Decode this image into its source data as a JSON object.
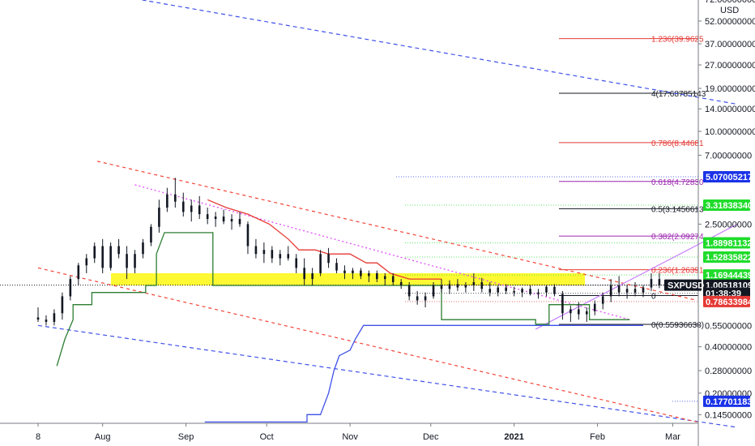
{
  "chart_data": {
    "type": "candlestick",
    "currency": "USD",
    "symbol": "SXPUSD",
    "y_scale": "log",
    "x_ticks": [
      "8",
      "Aug",
      "Sep",
      "Oct",
      "Nov",
      "Dec",
      "2021",
      "Feb",
      "Mar"
    ],
    "y_ticks": [
      {
        "label": "72.00000000",
        "value": 72
      },
      {
        "label": "52.00000000",
        "value": 52
      },
      {
        "label": "37.00000000",
        "value": 37
      },
      {
        "label": "27.00000000",
        "value": 27
      },
      {
        "label": "19.00000000",
        "value": 19
      },
      {
        "label": "14.00000000",
        "value": 14
      },
      {
        "label": "10.00000000",
        "value": 10
      },
      {
        "label": "7.00000000",
        "value": 7
      },
      {
        "label": "2.50000000",
        "value": 2.5
      },
      {
        "label": "0.55000000",
        "value": 0.55
      },
      {
        "label": "0.40000000",
        "value": 0.4
      },
      {
        "label": "0.28000000",
        "value": 0.28
      },
      {
        "label": "0.20000000",
        "value": 0.2
      },
      {
        "label": "0.14500000",
        "value": 0.145
      }
    ],
    "fib_levels": [
      {
        "label": "1.236(39.9625",
        "value": 39.9625,
        "color": "#e53935"
      },
      {
        "label": "4(17.68785143",
        "value": 17.68785143,
        "color": "#131722"
      },
      {
        "label": "0.786(8.44681",
        "value": 8.44681,
        "color": "#e53935"
      },
      {
        "label": "0.618(4.72830",
        "value": 4.7283,
        "color": "#9c27b0"
      },
      {
        "label": "0.5(3.1456613",
        "value": 3.1456613,
        "color": "#131722"
      },
      {
        "label": "0.382(2.09274",
        "value": 2.09274,
        "color": "#9c27b0"
      },
      {
        "label": "0.236(1.26391",
        "value": 1.26391,
        "color": "#e53935"
      },
      {
        "label": "0",
        "value": 0.86,
        "color": "#131722"
      },
      {
        "label": "0(0.55936638)",
        "value": 0.55936638,
        "color": "#131722"
      }
    ],
    "price_badges": [
      {
        "label": "5.07005217",
        "value": 5.07005217,
        "color": "#1a33e8"
      },
      {
        "label": "3.31838340",
        "value": 3.3183834,
        "color": "#1fdc2b"
      },
      {
        "label": "1.88981132",
        "value": 1.88981132,
        "color": "#1fdc2b"
      },
      {
        "label": "1.52835822",
        "value": 1.52835822,
        "color": "#1fdc2b"
      },
      {
        "label": "1.16944439",
        "value": 1.16944439,
        "color": "#1fdc2b"
      },
      {
        "label": "1.00518109",
        "value": 1.00518109,
        "color": "#131722"
      },
      {
        "label": "01:38:39",
        "value": 0.89,
        "color": "#131722"
      },
      {
        "label": "0.78633984",
        "value": 0.78633984,
        "color": "#e53935"
      },
      {
        "label": "0.17701183",
        "value": 0.17701183,
        "color": "#1a33e8"
      }
    ],
    "symbol_badge": {
      "label": "SXPUSD",
      "value": 1.00518109
    },
    "zone": {
      "low": 1.0,
      "high": 1.2
    },
    "price_series": [
      {
        "d": 0,
        "o": 0.62,
        "h": 0.72,
        "l": 0.58,
        "c": 0.6
      },
      {
        "d": 3,
        "o": 0.6,
        "h": 0.64,
        "l": 0.55,
        "c": 0.58
      },
      {
        "d": 6,
        "o": 0.58,
        "h": 0.7,
        "l": 0.55,
        "c": 0.66
      },
      {
        "d": 9,
        "o": 0.66,
        "h": 0.9,
        "l": 0.6,
        "c": 0.85
      },
      {
        "d": 12,
        "o": 0.85,
        "h": 1.15,
        "l": 0.8,
        "c": 1.1
      },
      {
        "d": 15,
        "o": 1.1,
        "h": 1.4,
        "l": 1.0,
        "c": 1.35
      },
      {
        "d": 18,
        "o": 1.35,
        "h": 1.6,
        "l": 1.2,
        "c": 1.5
      },
      {
        "d": 21,
        "o": 1.5,
        "h": 1.9,
        "l": 1.4,
        "c": 1.8
      },
      {
        "d": 24,
        "o": 1.8,
        "h": 2.0,
        "l": 1.2,
        "c": 1.3
      },
      {
        "d": 27,
        "o": 1.3,
        "h": 1.9,
        "l": 1.25,
        "c": 1.8
      },
      {
        "d": 30,
        "o": 1.8,
        "h": 2.0,
        "l": 1.5,
        "c": 1.6
      },
      {
        "d": 33,
        "o": 1.6,
        "h": 1.8,
        "l": 1.1,
        "c": 1.3
      },
      {
        "d": 36,
        "o": 1.3,
        "h": 1.7,
        "l": 1.2,
        "c": 1.6
      },
      {
        "d": 39,
        "o": 1.6,
        "h": 2.0,
        "l": 1.5,
        "c": 1.9
      },
      {
        "d": 42,
        "o": 1.9,
        "h": 2.5,
        "l": 1.8,
        "c": 2.4
      },
      {
        "d": 45,
        "o": 2.4,
        "h": 3.6,
        "l": 2.2,
        "c": 3.2
      },
      {
        "d": 48,
        "o": 3.2,
        "h": 4.3,
        "l": 3.0,
        "c": 3.9
      },
      {
        "d": 51,
        "o": 3.9,
        "h": 5.0,
        "l": 3.2,
        "c": 3.5
      },
      {
        "d": 54,
        "o": 3.5,
        "h": 4.0,
        "l": 2.8,
        "c": 3.0
      },
      {
        "d": 57,
        "o": 3.0,
        "h": 3.6,
        "l": 2.6,
        "c": 3.3
      },
      {
        "d": 60,
        "o": 3.3,
        "h": 3.8,
        "l": 2.7,
        "c": 2.9
      },
      {
        "d": 63,
        "o": 2.9,
        "h": 3.2,
        "l": 2.5,
        "c": 2.7
      },
      {
        "d": 66,
        "o": 2.7,
        "h": 3.0,
        "l": 2.4,
        "c": 2.8
      },
      {
        "d": 69,
        "o": 2.8,
        "h": 3.1,
        "l": 2.5,
        "c": 2.6
      },
      {
        "d": 72,
        "o": 2.6,
        "h": 2.9,
        "l": 2.3,
        "c": 2.7
      },
      {
        "d": 75,
        "o": 2.7,
        "h": 3.0,
        "l": 2.4,
        "c": 2.5
      },
      {
        "d": 78,
        "o": 2.5,
        "h": 2.6,
        "l": 1.6,
        "c": 1.8
      },
      {
        "d": 81,
        "o": 1.8,
        "h": 2.0,
        "l": 1.5,
        "c": 1.6
      },
      {
        "d": 84,
        "o": 1.6,
        "h": 1.9,
        "l": 1.4,
        "c": 1.7
      },
      {
        "d": 87,
        "o": 1.7,
        "h": 1.8,
        "l": 1.4,
        "c": 1.5
      },
      {
        "d": 90,
        "o": 1.5,
        "h": 1.7,
        "l": 1.35,
        "c": 1.6
      },
      {
        "d": 93,
        "o": 1.6,
        "h": 1.8,
        "l": 1.45,
        "c": 1.5
      },
      {
        "d": 96,
        "o": 1.5,
        "h": 1.6,
        "l": 1.2,
        "c": 1.3
      },
      {
        "d": 99,
        "o": 1.3,
        "h": 1.5,
        "l": 1.0,
        "c": 1.1
      },
      {
        "d": 102,
        "o": 1.1,
        "h": 1.3,
        "l": 1.0,
        "c": 1.2
      },
      {
        "d": 105,
        "o": 1.2,
        "h": 1.7,
        "l": 1.15,
        "c": 1.6
      },
      {
        "d": 108,
        "o": 1.6,
        "h": 1.75,
        "l": 1.3,
        "c": 1.4
      },
      {
        "d": 111,
        "o": 1.4,
        "h": 1.5,
        "l": 1.2,
        "c": 1.25
      },
      {
        "d": 114,
        "o": 1.25,
        "h": 1.35,
        "l": 1.1,
        "c": 1.2
      },
      {
        "d": 117,
        "o": 1.2,
        "h": 1.3,
        "l": 1.1,
        "c": 1.25
      },
      {
        "d": 120,
        "o": 1.25,
        "h": 1.3,
        "l": 1.1,
        "c": 1.15
      },
      {
        "d": 123,
        "o": 1.15,
        "h": 1.25,
        "l": 1.05,
        "c": 1.2
      },
      {
        "d": 126,
        "o": 1.2,
        "h": 1.25,
        "l": 1.05,
        "c": 1.1
      },
      {
        "d": 129,
        "o": 1.1,
        "h": 1.2,
        "l": 1.0,
        "c": 1.15
      },
      {
        "d": 132,
        "o": 1.15,
        "h": 1.2,
        "l": 1.0,
        "c": 1.05
      },
      {
        "d": 135,
        "o": 1.05,
        "h": 1.1,
        "l": 0.95,
        "c": 1.0
      },
      {
        "d": 138,
        "o": 1.0,
        "h": 1.05,
        "l": 0.8,
        "c": 0.85
      },
      {
        "d": 141,
        "o": 0.85,
        "h": 0.92,
        "l": 0.75,
        "c": 0.8
      },
      {
        "d": 144,
        "o": 0.8,
        "h": 0.9,
        "l": 0.72,
        "c": 0.85
      },
      {
        "d": 147,
        "o": 0.85,
        "h": 1.05,
        "l": 0.82,
        "c": 1.0
      },
      {
        "d": 150,
        "o": 1.0,
        "h": 1.1,
        "l": 0.9,
        "c": 0.95
      },
      {
        "d": 153,
        "o": 0.95,
        "h": 1.08,
        "l": 0.88,
        "c": 1.02
      },
      {
        "d": 156,
        "o": 1.02,
        "h": 1.1,
        "l": 0.92,
        "c": 0.97
      },
      {
        "d": 159,
        "o": 0.97,
        "h": 1.05,
        "l": 0.9,
        "c": 1.0
      },
      {
        "d": 162,
        "o": 1.0,
        "h": 1.2,
        "l": 0.92,
        "c": 1.05
      },
      {
        "d": 165,
        "o": 1.05,
        "h": 1.12,
        "l": 0.9,
        "c": 0.95
      },
      {
        "d": 168,
        "o": 0.95,
        "h": 1.05,
        "l": 0.85,
        "c": 0.9
      },
      {
        "d": 171,
        "o": 0.9,
        "h": 1.0,
        "l": 0.85,
        "c": 0.97
      },
      {
        "d": 174,
        "o": 0.97,
        "h": 1.02,
        "l": 0.88,
        "c": 0.92
      },
      {
        "d": 177,
        "o": 0.92,
        "h": 0.98,
        "l": 0.85,
        "c": 0.9
      },
      {
        "d": 180,
        "o": 0.9,
        "h": 0.97,
        "l": 0.84,
        "c": 0.95
      },
      {
        "d": 183,
        "o": 0.95,
        "h": 1.0,
        "l": 0.86,
        "c": 0.88
      },
      {
        "d": 186,
        "o": 0.88,
        "h": 0.95,
        "l": 0.82,
        "c": 0.9
      },
      {
        "d": 189,
        "o": 0.9,
        "h": 1.0,
        "l": 0.85,
        "c": 0.98
      },
      {
        "d": 192,
        "o": 0.98,
        "h": 1.02,
        "l": 0.85,
        "c": 0.88
      },
      {
        "d": 195,
        "o": 0.88,
        "h": 0.92,
        "l": 0.6,
        "c": 0.66
      },
      {
        "d": 198,
        "o": 0.66,
        "h": 0.74,
        "l": 0.58,
        "c": 0.7
      },
      {
        "d": 201,
        "o": 0.7,
        "h": 0.78,
        "l": 0.6,
        "c": 0.65
      },
      {
        "d": 204,
        "o": 0.65,
        "h": 0.72,
        "l": 0.58,
        "c": 0.68
      },
      {
        "d": 207,
        "o": 0.68,
        "h": 0.8,
        "l": 0.64,
        "c": 0.76
      },
      {
        "d": 210,
        "o": 0.76,
        "h": 0.9,
        "l": 0.7,
        "c": 0.85
      },
      {
        "d": 213,
        "o": 0.85,
        "h": 1.1,
        "l": 0.78,
        "c": 1.0
      },
      {
        "d": 216,
        "o": 1.0,
        "h": 1.15,
        "l": 0.85,
        "c": 0.9
      },
      {
        "d": 219,
        "o": 0.9,
        "h": 1.0,
        "l": 0.82,
        "c": 0.95
      },
      {
        "d": 222,
        "o": 0.95,
        "h": 1.05,
        "l": 0.85,
        "c": 0.9
      },
      {
        "d": 225,
        "o": 0.9,
        "h": 1.0,
        "l": 0.84,
        "c": 0.97
      },
      {
        "d": 228,
        "o": 0.97,
        "h": 1.2,
        "l": 0.92,
        "c": 1.1
      },
      {
        "d": 231,
        "o": 1.1,
        "h": 1.2,
        "l": 0.96,
        "c": 1.005
      }
    ],
    "green_stepline": [
      {
        "d": 7,
        "v": 0.3
      },
      {
        "d": 10,
        "v": 0.45
      },
      {
        "d": 13,
        "v": 0.6
      },
      {
        "d": 13,
        "v": 0.75
      },
      {
        "d": 20,
        "v": 0.75
      },
      {
        "d": 20,
        "v": 0.9
      },
      {
        "d": 40,
        "v": 0.9
      },
      {
        "d": 40,
        "v": 1.0
      },
      {
        "d": 44,
        "v": 1.0
      },
      {
        "d": 44,
        "v": 1.6
      },
      {
        "d": 47,
        "v": 2.2
      },
      {
        "d": 65,
        "v": 2.2
      },
      {
        "d": 65,
        "v": 1.0
      },
      {
        "d": 150,
        "v": 1.0
      },
      {
        "d": 150,
        "v": 0.6
      },
      {
        "d": 185,
        "v": 0.6
      },
      {
        "d": 185,
        "v": 0.56
      },
      {
        "d": 190,
        "v": 0.56
      },
      {
        "d": 190,
        "v": 0.75
      },
      {
        "d": 205,
        "v": 0.75
      },
      {
        "d": 205,
        "v": 0.6
      },
      {
        "d": 220,
        "v": 0.6
      }
    ],
    "red_stepline": [
      {
        "d": 63,
        "v": 3.6
      },
      {
        "d": 70,
        "v": 3.2
      },
      {
        "d": 78,
        "v": 2.9
      },
      {
        "d": 86,
        "v": 2.5
      },
      {
        "d": 93,
        "v": 2.0
      },
      {
        "d": 97,
        "v": 1.7
      },
      {
        "d": 103,
        "v": 1.7
      },
      {
        "d": 108,
        "v": 1.6
      },
      {
        "d": 116,
        "v": 1.6
      },
      {
        "d": 122,
        "v": 1.4
      },
      {
        "d": 126,
        "v": 1.4
      },
      {
        "d": 131,
        "v": 1.2
      },
      {
        "d": 138,
        "v": 1.1
      },
      {
        "d": 150,
        "v": 1.1
      }
    ],
    "blue_stepline": [
      {
        "d": 62,
        "v": 0.13
      },
      {
        "d": 100,
        "v": 0.13
      },
      {
        "d": 100,
        "v": 0.145
      },
      {
        "d": 105,
        "v": 0.145
      },
      {
        "d": 108,
        "v": 0.2
      },
      {
        "d": 110,
        "v": 0.28
      },
      {
        "d": 112,
        "v": 0.35
      },
      {
        "d": 116,
        "v": 0.38
      },
      {
        "d": 118,
        "v": 0.45
      },
      {
        "d": 121,
        "v": 0.55
      },
      {
        "d": 225,
        "v": 0.55
      }
    ],
    "trendlines": [
      {
        "style": "blue-dashed",
        "from": {
          "d": 12,
          "v": 86
        },
        "to": {
          "d": 260,
          "v": 15
        }
      },
      {
        "style": "blue-dashed",
        "from": {
          "d": 0,
          "v": 0.55
        },
        "to": {
          "d": 260,
          "v": 0.12
        }
      },
      {
        "style": "red-dashed",
        "from": {
          "d": 22,
          "v": 6.4
        },
        "to": {
          "d": 245,
          "v": 0.8
        }
      },
      {
        "style": "red-dashed",
        "from": {
          "d": 0,
          "v": 1.3
        },
        "to": {
          "d": 245,
          "v": 0.13
        }
      },
      {
        "style": "magenta-dotted",
        "from": {
          "d": 36,
          "v": 4.5
        },
        "to": {
          "d": 220,
          "v": 0.6
        }
      },
      {
        "style": "violet-solid",
        "from": {
          "d": 185,
          "v": 0.52
        },
        "to": {
          "d": 260,
          "v": 2.5
        }
      }
    ]
  }
}
